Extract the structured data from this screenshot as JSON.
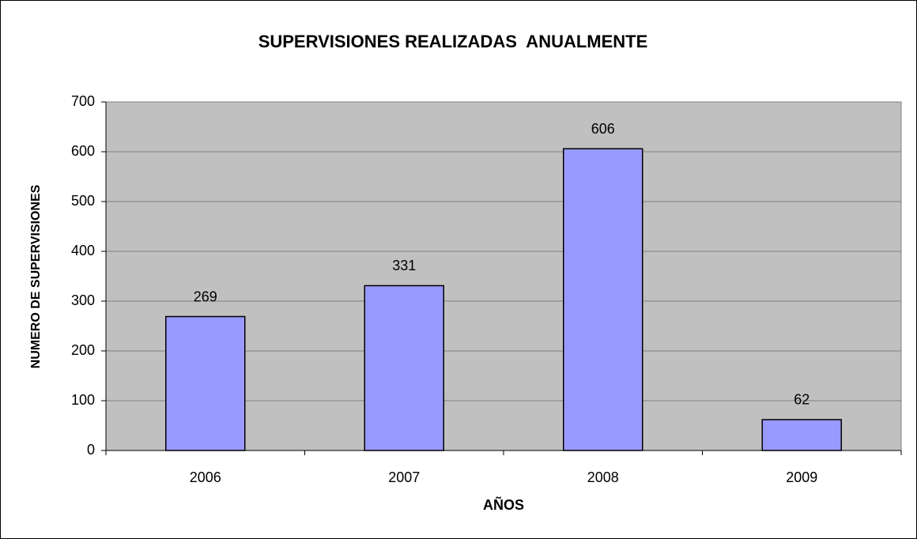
{
  "chart_data": {
    "type": "bar",
    "title": "SUPERVISIONES REALIZADAS  ANUALMENTE",
    "x_label": "AÑOS",
    "y_label": "NUMERO DE SUPERVISIONES",
    "categories": [
      "2006",
      "2007",
      "2008",
      "2009"
    ],
    "values": [
      269,
      331,
      606,
      62
    ],
    "color": "#9999ff",
    "ylim": [
      0,
      700
    ],
    "yticks": [
      0,
      100,
      200,
      300,
      400,
      500,
      600,
      700
    ],
    "grid": true
  }
}
